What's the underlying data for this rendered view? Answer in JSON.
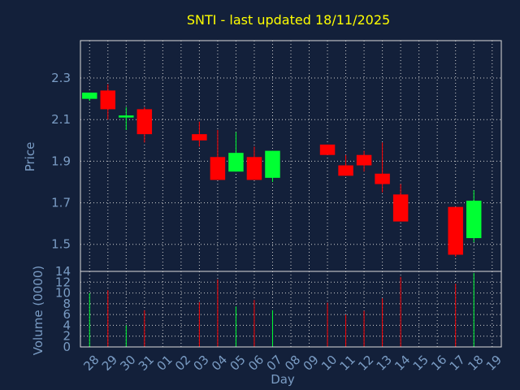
{
  "chart_data": {
    "type": "candlestick",
    "title": "SNTI - last updated 18/11/2025",
    "xlabel": "Day",
    "ylabel_price": "Price",
    "ylabel_volume": "Volume (0000)",
    "x_ticks": [
      "28",
      "29",
      "30",
      "31",
      "01",
      "02",
      "03",
      "04",
      "05",
      "06",
      "07",
      "08",
      "09",
      "10",
      "11",
      "12",
      "13",
      "14",
      "15",
      "16",
      "17",
      "18",
      "19"
    ],
    "price_ylim": [
      1.37,
      2.48
    ],
    "price_ticks": [
      "1.5",
      "1.7",
      "1.9",
      "2.1",
      "2.3"
    ],
    "volume_ylim": [
      0,
      14
    ],
    "volume_ticks": [
      "0",
      "2",
      "4",
      "6",
      "8",
      "10",
      "12",
      "14"
    ],
    "grid": true,
    "colors": {
      "up": "#00ff33",
      "down": "#ff0000",
      "background": "#13203a",
      "grid": "#d0d0d0",
      "title": "#ffff00",
      "text": "#7a9cc4"
    },
    "candles": [
      {
        "day": "28",
        "open": 2.2,
        "high": 2.23,
        "low": 2.19,
        "close": 2.23,
        "volume": 10
      },
      {
        "day": "29",
        "open": 2.24,
        "high": 2.27,
        "low": 2.1,
        "close": 2.15,
        "volume": 10.5
      },
      {
        "day": "30",
        "open": 2.11,
        "high": 2.16,
        "low": 2.05,
        "close": 2.12,
        "volume": 4
      },
      {
        "day": "31",
        "open": 2.15,
        "high": 2.16,
        "low": 1.99,
        "close": 2.03,
        "volume": 6.8
      },
      {
        "day": "03",
        "open": 2.03,
        "high": 2.09,
        "low": 1.97,
        "close": 2.0,
        "volume": 8.3
      },
      {
        "day": "04",
        "open": 1.92,
        "high": 2.05,
        "low": 1.81,
        "close": 1.81,
        "volume": 12.5
      },
      {
        "day": "05",
        "open": 1.85,
        "high": 2.04,
        "low": 1.85,
        "close": 1.94,
        "volume": 7.5
      },
      {
        "day": "06",
        "open": 1.92,
        "high": 1.97,
        "low": 1.81,
        "close": 1.81,
        "volume": 8.7
      },
      {
        "day": "07",
        "open": 1.82,
        "high": 1.95,
        "low": 1.8,
        "close": 1.95,
        "volume": 6.8
      },
      {
        "day": "10",
        "open": 1.98,
        "high": 1.98,
        "low": 1.93,
        "close": 1.93,
        "volume": 8.2
      },
      {
        "day": "11",
        "open": 1.88,
        "high": 1.93,
        "low": 1.83,
        "close": 1.83,
        "volume": 6
      },
      {
        "day": "12",
        "open": 1.93,
        "high": 1.95,
        "low": 1.85,
        "close": 1.88,
        "volume": 6.7
      },
      {
        "day": "13",
        "open": 1.84,
        "high": 1.99,
        "low": 1.75,
        "close": 1.79,
        "volume": 9
      },
      {
        "day": "14",
        "open": 1.74,
        "high": 1.79,
        "low": 1.61,
        "close": 1.61,
        "volume": 13
      },
      {
        "day": "17",
        "open": 1.68,
        "high": 1.68,
        "low": 1.44,
        "close": 1.45,
        "volume": 11.7
      },
      {
        "day": "18",
        "open": 1.53,
        "high": 1.76,
        "low": 1.51,
        "close": 1.71,
        "volume": 13.7
      }
    ]
  }
}
